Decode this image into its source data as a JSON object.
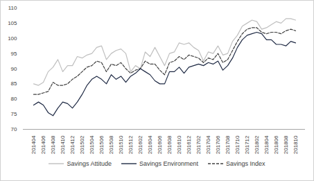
{
  "chart_data": {
    "type": "line",
    "categories": [
      "201404",
      null,
      "201406",
      null,
      "201408",
      null,
      "201410",
      null,
      "201412",
      null,
      "201502",
      null,
      "201504",
      null,
      "201506",
      null,
      "201508",
      null,
      "201510",
      null,
      "201512",
      null,
      "201602",
      null,
      "201604",
      null,
      "201606",
      null,
      "201608",
      null,
      "201610",
      null,
      "201612",
      null,
      "201702",
      null,
      "201704",
      null,
      "201706",
      null,
      "201708",
      null,
      "201710",
      null,
      "201712",
      null,
      "201802",
      null,
      "201804",
      null,
      "201806",
      null,
      "201808",
      null,
      "201810"
    ],
    "series": [
      {
        "name": "Savings Attitude",
        "color": "#bfbfbf",
        "line_style": "solid",
        "values": [
          85,
          84.5,
          85.5,
          89,
          90.5,
          93,
          89,
          91,
          91,
          94,
          93.5,
          94.5,
          95,
          97,
          97.5,
          93,
          95,
          96,
          96.5,
          95,
          89,
          91,
          90,
          95.5,
          94,
          97,
          94,
          91,
          95,
          95.5,
          98.5,
          98,
          98.5,
          97,
          96,
          92.5,
          95.5,
          95,
          97.5,
          94.5,
          95,
          99,
          101,
          104,
          105,
          106,
          105.5,
          103,
          103.5,
          104.5,
          105.5,
          105,
          106.5,
          106.5,
          106
        ]
      },
      {
        "name": "Savings Environment",
        "color": "#1f2a44",
        "line_style": "solid",
        "values": [
          78,
          79,
          78,
          75.5,
          74.5,
          77,
          79,
          78.5,
          77,
          79,
          81.5,
          84.5,
          86.5,
          87.5,
          86.5,
          85,
          88,
          86.5,
          87.5,
          85.5,
          87.5,
          88.5,
          90,
          89,
          88,
          86,
          85,
          85,
          89,
          89,
          90.5,
          88.5,
          90.5,
          91,
          91.5,
          91,
          92,
          91.5,
          92.5,
          89.5,
          91,
          93.5,
          97,
          99.5,
          101,
          101.5,
          102,
          101.5,
          99.5,
          99.5,
          98,
          98,
          97.5,
          99,
          98.5
        ]
      },
      {
        "name": "Savings Index",
        "color": "#404040",
        "line_style": "dashed",
        "values": [
          81.5,
          81.5,
          82,
          82.5,
          85.5,
          84.5,
          84.5,
          85,
          86.5,
          87.5,
          89,
          90.5,
          91,
          92.5,
          92,
          89,
          91.5,
          91,
          92,
          90,
          88.5,
          89.5,
          90,
          92.5,
          91.5,
          91.5,
          89.5,
          88,
          92,
          92.5,
          94,
          93,
          94.5,
          94,
          93.5,
          92,
          93.5,
          93,
          95,
          92,
          93,
          96,
          99,
          101.5,
          103,
          103.5,
          103.5,
          102,
          101.5,
          102,
          102,
          101.5,
          102.5,
          103,
          102.5
        ]
      }
    ],
    "ylim": [
      70,
      110
    ],
    "yticks": [
      70,
      75,
      80,
      85,
      90,
      95,
      100,
      105,
      110
    ],
    "grid": false,
    "legend": "bottom"
  }
}
